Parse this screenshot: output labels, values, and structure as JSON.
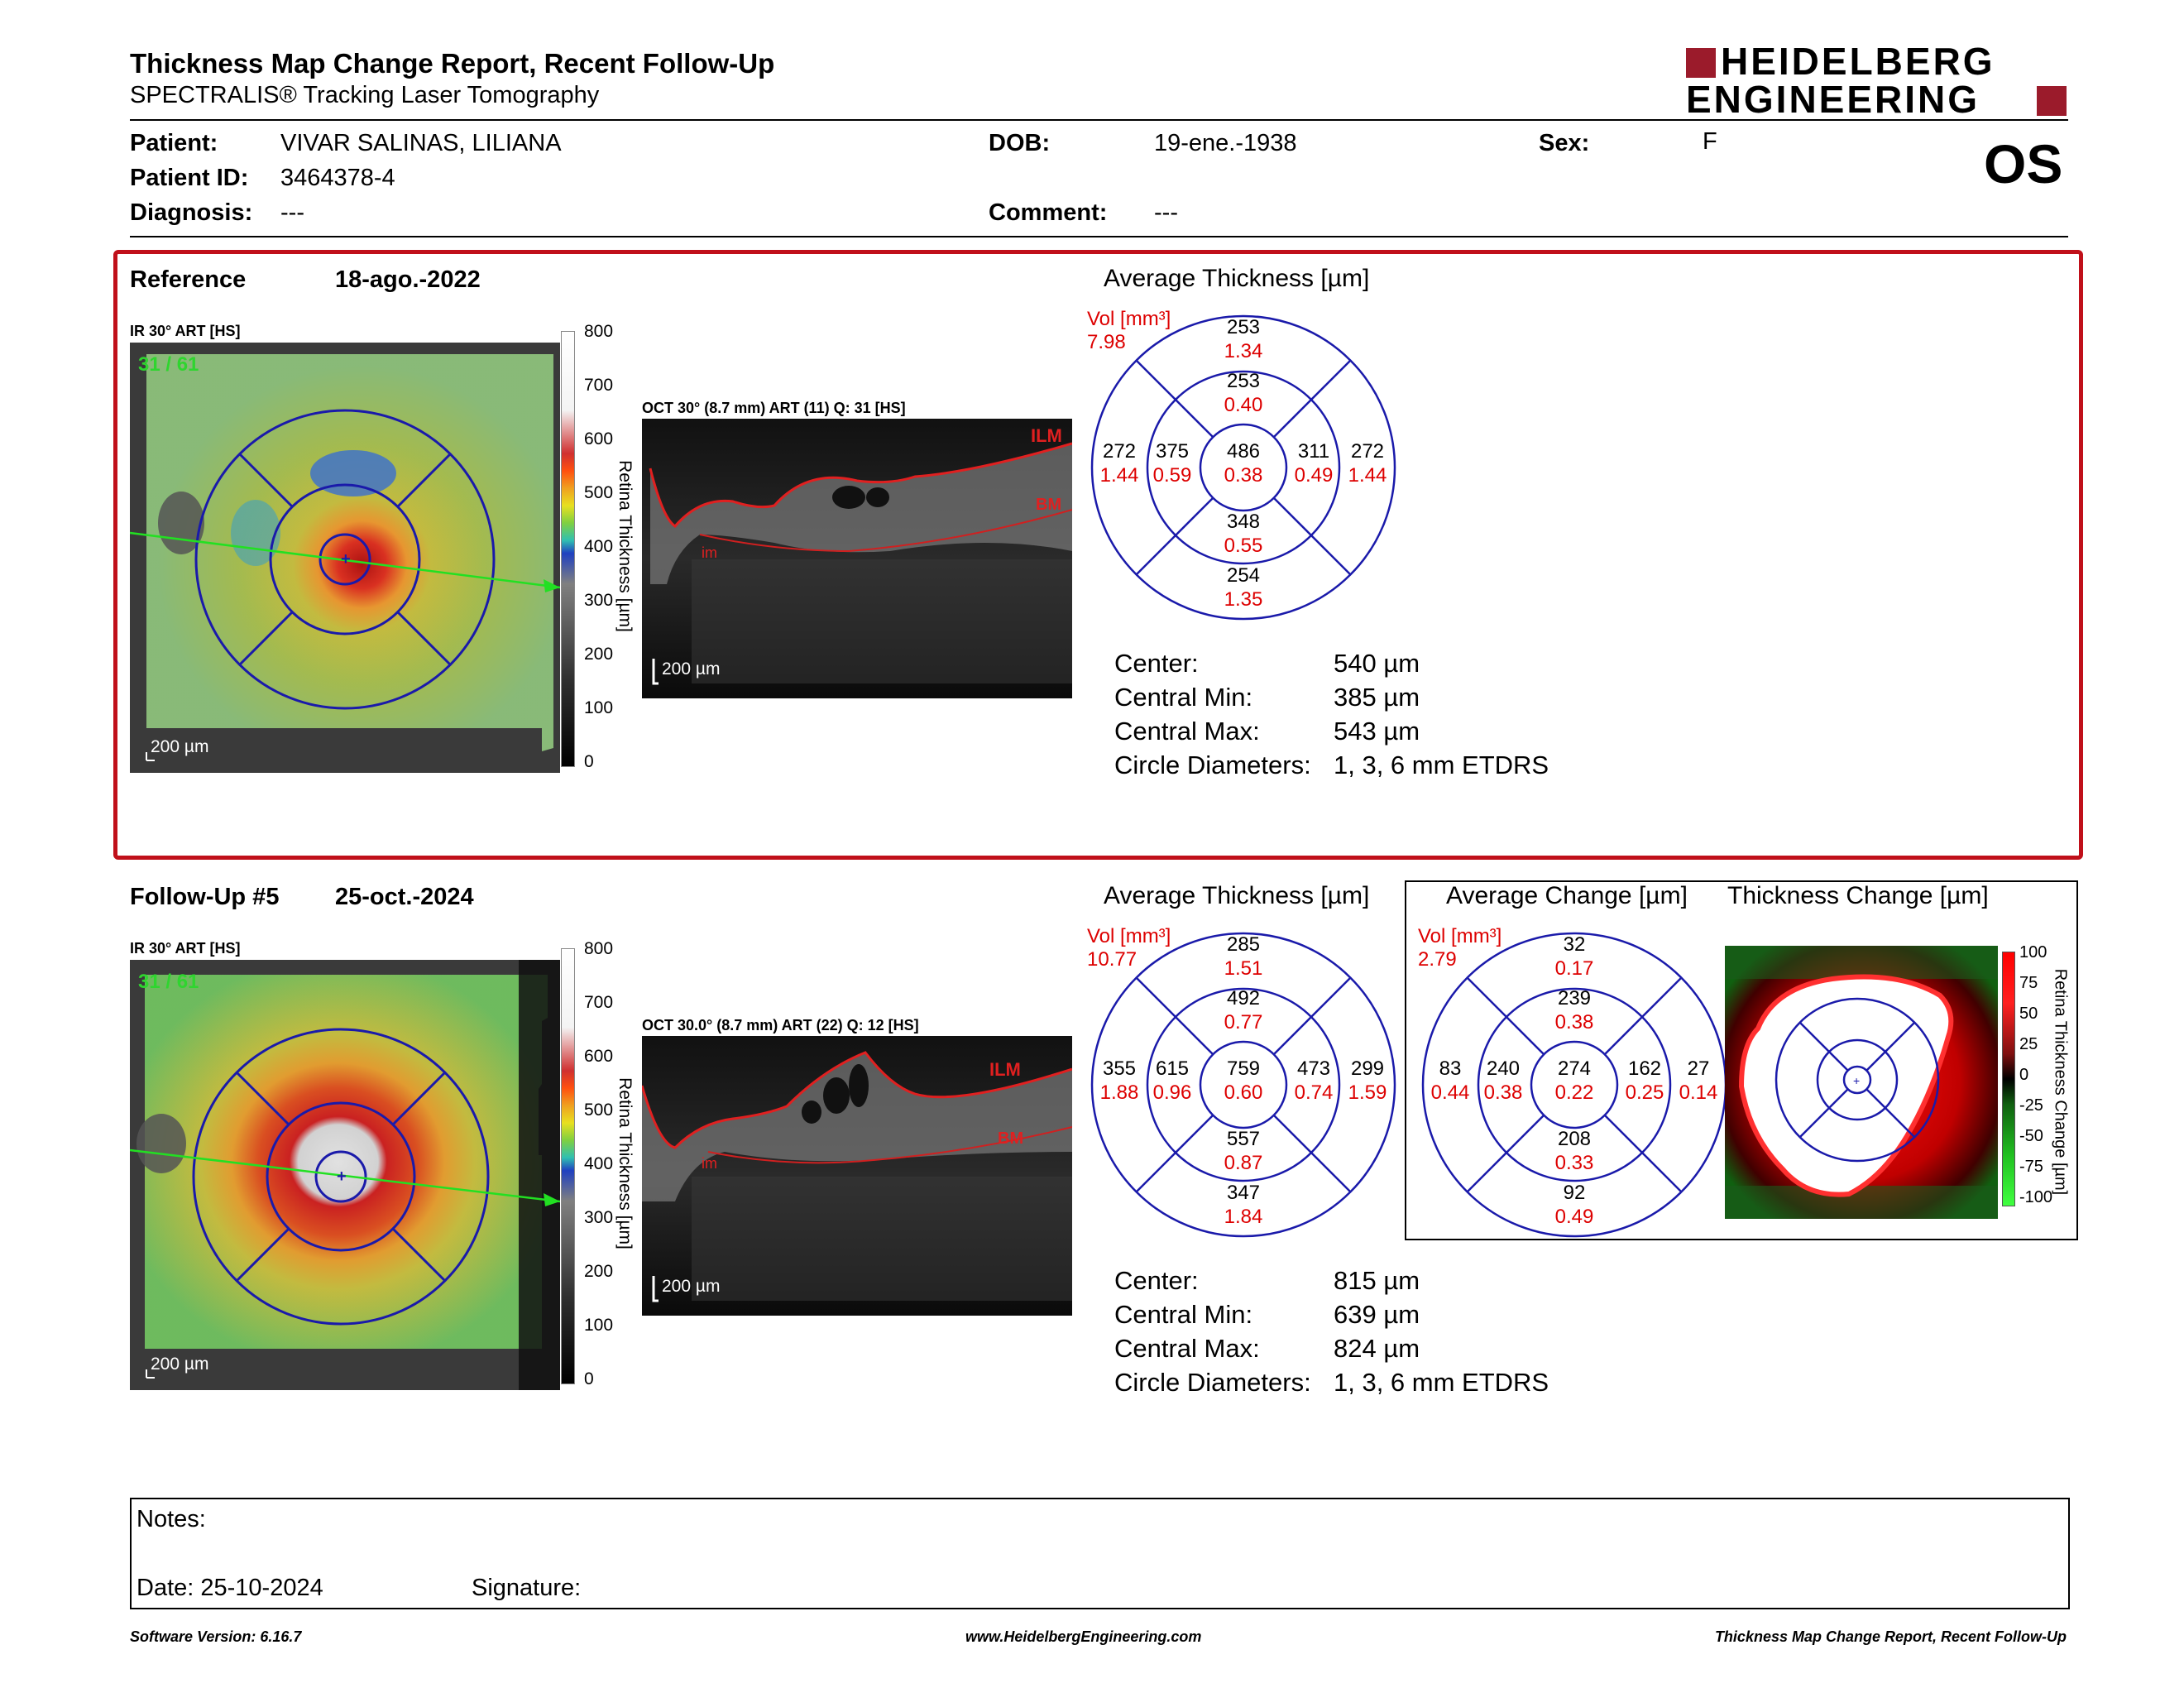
{
  "header": {
    "title": "Thickness Map Change Report, Recent Follow-Up",
    "subtitle": "SPECTRALIS® Tracking Laser Tomography",
    "brand_line1": "HEIDELBERG",
    "brand_line2": "ENGINEERING",
    "eye": "OS"
  },
  "patient": {
    "patient_label": "Patient:",
    "patient_value": "VIVAR SALINAS, LILIANA",
    "id_label": "Patient ID:",
    "id_value": "3464378-4",
    "diagnosis_label": "Diagnosis:",
    "diagnosis_value": "---",
    "dob_label": "DOB:",
    "dob_value": "19-ene.-1938",
    "comment_label": "Comment:",
    "comment_value": "---",
    "sex_label": "Sex:",
    "sex_value": "F"
  },
  "reference": {
    "label": "Reference",
    "date": "18-ago.-2022",
    "ir_label": "IR 30° ART [HS]",
    "ir_counter": "31 / 61",
    "ir_scale": "200 µm",
    "oct_label": "OCT 30° (8.7 mm) ART (11) Q: 31 [HS]",
    "oct_scale": "200 µm",
    "avg_title": "Average Thickness [µm]",
    "vol_label": "Vol [mm³]",
    "vol_value": "7.98",
    "sectors": {
      "outer_top": [
        "253",
        "1.34"
      ],
      "inner_top": [
        "253",
        "0.40"
      ],
      "outer_left": [
        "272",
        "1.44"
      ],
      "inner_left": [
        "375",
        "0.59"
      ],
      "center": [
        "486",
        "0.38"
      ],
      "inner_right": [
        "311",
        "0.49"
      ],
      "outer_right": [
        "272",
        "1.44"
      ],
      "inner_bottom": [
        "348",
        "0.55"
      ],
      "outer_bottom": [
        "254",
        "1.35"
      ]
    },
    "stats": [
      {
        "label": "Center:",
        "value": "540 µm"
      },
      {
        "label": "Central Min:",
        "value": "385 µm"
      },
      {
        "label": "Central Max:",
        "value": "543 µm"
      },
      {
        "label": "Circle Diameters:",
        "value": "1, 3, 6 mm ETDRS"
      }
    ]
  },
  "followup": {
    "label": "Follow-Up #5",
    "date": "25-oct.-2024",
    "ir_label": "IR 30° ART [HS]",
    "ir_counter": "31 / 61",
    "ir_scale": "200 µm",
    "oct_label": "OCT 30.0° (8.7 mm) ART (22) Q: 12 [HS]",
    "oct_scale": "200 µm",
    "avg_title": "Average Thickness [µm]",
    "vol_label": "Vol [mm³]",
    "vol_value": "10.77",
    "sectors": {
      "outer_top": [
        "285",
        "1.51"
      ],
      "inner_top": [
        "492",
        "0.77"
      ],
      "outer_left": [
        "355",
        "1.88"
      ],
      "inner_left": [
        "615",
        "0.96"
      ],
      "center": [
        "759",
        "0.60"
      ],
      "inner_right": [
        "473",
        "0.74"
      ],
      "outer_right": [
        "299",
        "1.59"
      ],
      "inner_bottom": [
        "557",
        "0.87"
      ],
      "outer_bottom": [
        "347",
        "1.84"
      ]
    },
    "stats": [
      {
        "label": "Center:",
        "value": "815 µm"
      },
      {
        "label": "Central Min:",
        "value": "639 µm"
      },
      {
        "label": "Central Max:",
        "value": "824 µm"
      },
      {
        "label": "Circle Diameters:",
        "value": "1, 3, 6 mm ETDRS"
      }
    ]
  },
  "change": {
    "avg_title": "Average Change [µm]",
    "map_title": "Thickness Change [µm]",
    "vol_label": "Vol [mm³]",
    "vol_value": "2.79",
    "sectors": {
      "outer_top": [
        "32",
        "0.17"
      ],
      "inner_top": [
        "239",
        "0.38"
      ],
      "outer_left": [
        "83",
        "0.44"
      ],
      "inner_left": [
        "240",
        "0.38"
      ],
      "center": [
        "274",
        "0.22"
      ],
      "inner_right": [
        "162",
        "0.25"
      ],
      "outer_right": [
        "27",
        "0.14"
      ],
      "inner_bottom": [
        "208",
        "0.33"
      ],
      "outer_bottom": [
        "92",
        "0.49"
      ]
    },
    "colorbar_ticks": [
      "100",
      "75",
      "50",
      "25",
      "0",
      "-25",
      "-50",
      "-75",
      "-100"
    ],
    "colorbar_label": "Retina Thickness Change [µm]"
  },
  "thickness_colorbar": {
    "ticks": [
      "800",
      "700",
      "600",
      "500",
      "400",
      "300",
      "200",
      "100",
      "0"
    ],
    "label": "Retina Thickness [µm]"
  },
  "oct_markers": {
    "ilm": "ILM",
    "bm": "BM",
    "im": "im"
  },
  "notes": {
    "notes_label": "Notes:",
    "date_label": "Date: 25-10-2024",
    "signature_label": "Signature:"
  },
  "footer": {
    "left": "Software Version: 6.16.7",
    "center": "www.HeidelbergEngineering.com",
    "right": "Thickness Map Change Report, Recent Follow-Up"
  },
  "colors": {
    "accent_red": "#c0101a",
    "value_red": "#dd0000",
    "grid_blue": "#1a1aaa"
  }
}
